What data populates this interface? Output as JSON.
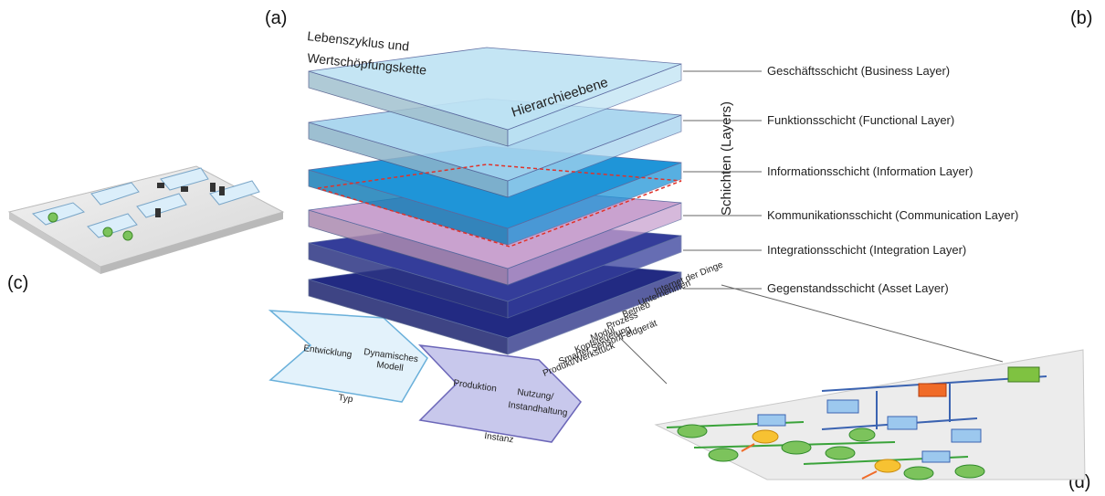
{
  "panels": {
    "a": "(a)",
    "b": "(b)",
    "c": "(c)",
    "d": "(d)"
  },
  "cube_axes": {
    "lifecycle_line1": "Lebenszyklus und",
    "lifecycle_line2": "Wertschöpfungskette",
    "hierarchy": "Hierarchieebene",
    "layers_title": "Schichten (Layers)"
  },
  "layers": [
    {
      "label": "Geschäftsschicht (Business Layer)",
      "color": "#bfe3f4"
    },
    {
      "label": "Funktionsschicht (Functional Layer)",
      "color": "#a6d4ee"
    },
    {
      "label": "Informationsschicht (Information Layer)",
      "color": "#1f95d8"
    },
    {
      "label": "Kommunikationsschicht (Communication Layer)",
      "color": "#c9a2cf"
    },
    {
      "label": "Integrationsschicht (Integration Layer)",
      "color": "#343d9a"
    },
    {
      "label": "Gegenstandsschicht (Asset Layer)",
      "color": "#222a82"
    }
  ],
  "hierarchy_levels": [
    "Internet der Dinge",
    "Unternehmen",
    "Betrieb",
    "Prozess",
    "Modul",
    "Kopfsteuerung",
    "Smarter Sensor/Feldgerät",
    "Produkt/Werkstück"
  ],
  "lifecycle": {
    "type_items": [
      "Entwicklung",
      "Dynamisches",
      "Modell"
    ],
    "type_label": "Typ",
    "instance_items": [
      "Produktion",
      "Nutzung/",
      "Instandhaltung"
    ],
    "instance_label": "Instanz"
  },
  "colors": {
    "arrow_type": "#e3f2fb",
    "arrow_instance": "#c8c8ec",
    "red_dashed": "#e0322a"
  }
}
